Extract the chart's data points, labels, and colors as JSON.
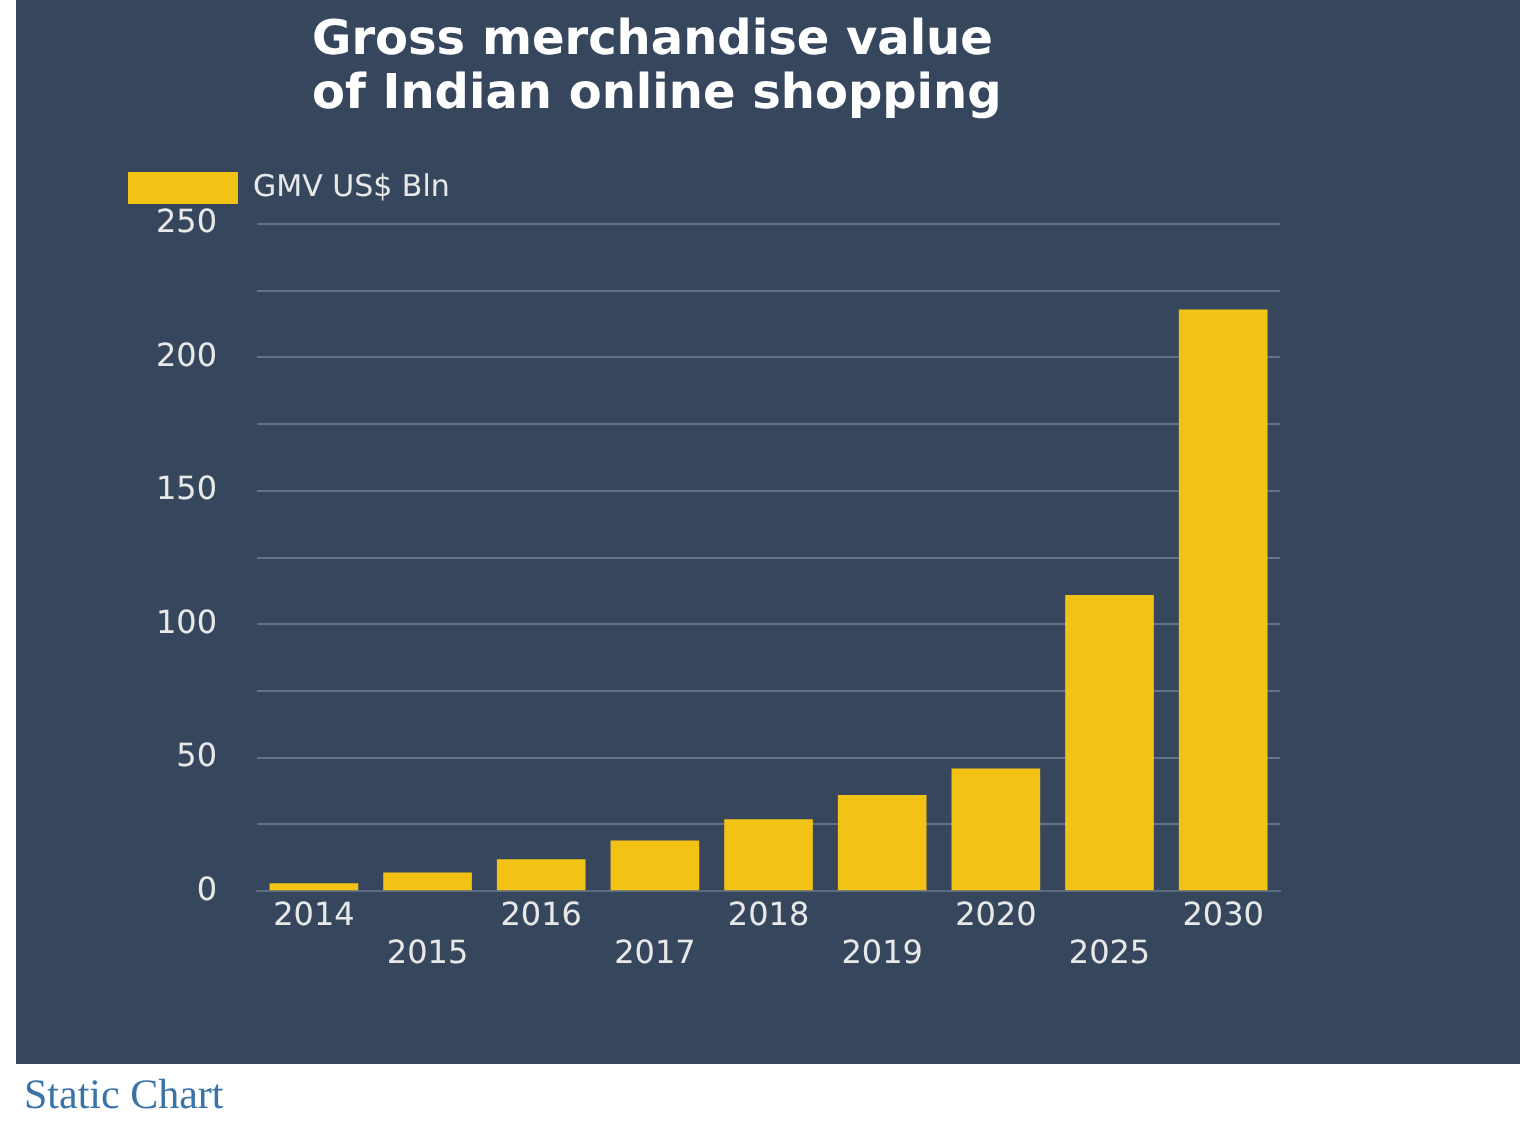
{
  "chart_data": {
    "type": "bar",
    "title": "Gross merchandise value of Indian online shopping",
    "categories": [
      "2014",
      "2015",
      "2016",
      "2017",
      "2018",
      "2019",
      "2020",
      "2025",
      "2030"
    ],
    "series": [
      {
        "name": "GMV US$ Bln",
        "color": "#f2c315",
        "values": [
          3,
          7,
          12,
          19,
          27,
          36,
          46,
          111,
          218
        ]
      }
    ],
    "ylim": [
      0,
      250
    ],
    "yticks": [
      0,
      {
        "value": 25,
        "label": null
      },
      50,
      {
        "value": 75,
        "label": null
      },
      100,
      {
        "value": 125,
        "label": null
      },
      150,
      {
        "value": 175,
        "label": null
      },
      200,
      {
        "value": 225,
        "label": null
      },
      250
    ],
    "grid": "y",
    "legend": "top left",
    "annotations": [
      "Static Chart"
    ]
  }
}
